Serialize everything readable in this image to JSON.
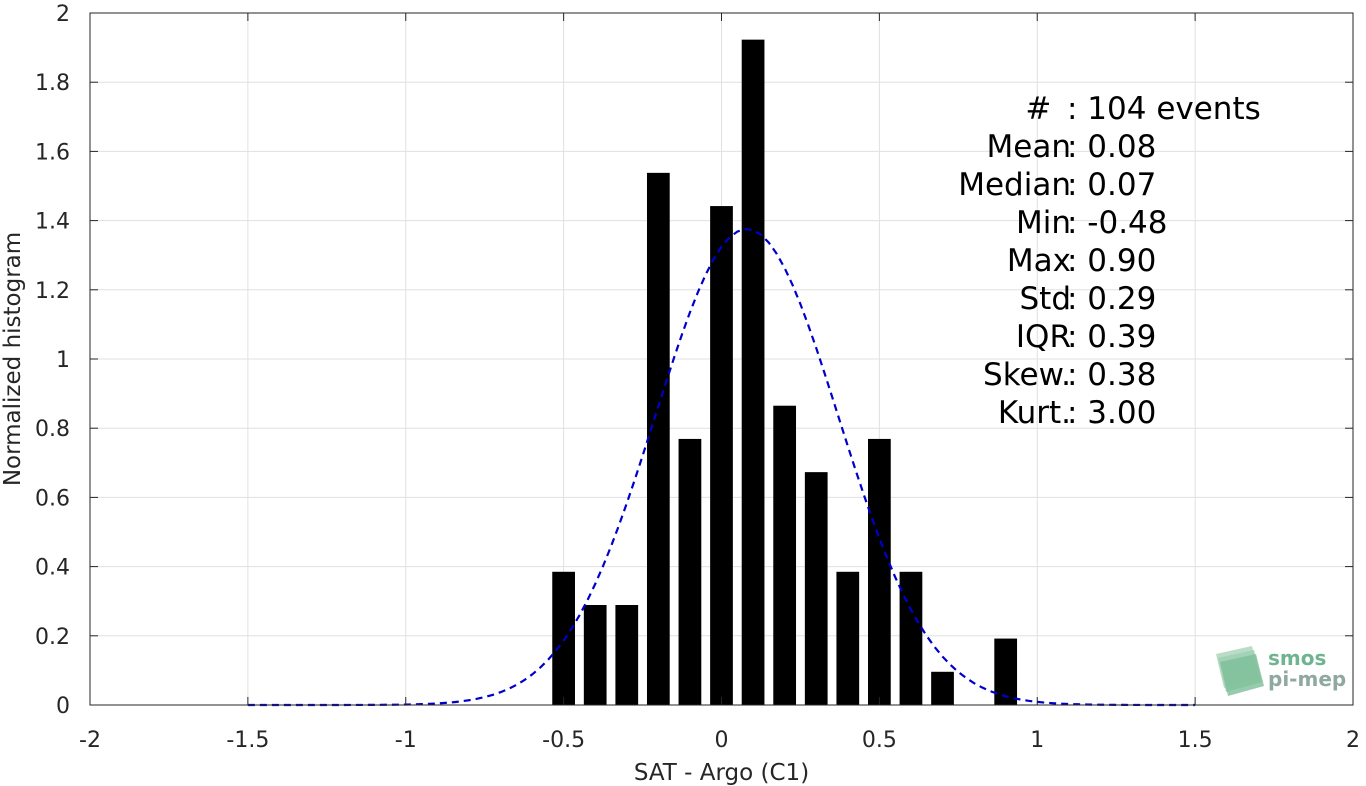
{
  "chart_data": {
    "type": "bar",
    "xlabel": "SAT - Argo (C1)",
    "ylabel": "Normalized histogram",
    "xlim": [
      -2,
      2
    ],
    "ylim": [
      0,
      2
    ],
    "x_ticks": [
      "-2",
      "-1.5",
      "-1",
      "-0.5",
      "0",
      "0.5",
      "1",
      "1.5",
      "2"
    ],
    "y_ticks": [
      "0",
      "0.2",
      "0.4",
      "0.6",
      "0.8",
      "1",
      "1.2",
      "1.4",
      "1.6",
      "1.8",
      "2"
    ],
    "grid": true,
    "bars": {
      "x": [
        -0.5,
        -0.4,
        -0.3,
        -0.2,
        -0.1,
        0.0,
        0.1,
        0.2,
        0.3,
        0.4,
        0.5,
        0.6,
        0.7,
        0.9
      ],
      "values": [
        0.385,
        0.289,
        0.289,
        1.538,
        0.769,
        1.442,
        1.923,
        0.865,
        0.673,
        0.385,
        0.769,
        0.385,
        0.096,
        0.192
      ],
      "color": "#000000"
    },
    "fit_curve": {
      "style": "dashed",
      "color": "#0000cc",
      "mean": 0.08,
      "std": 0.29,
      "x_range": [
        -1.5,
        1.5
      ]
    },
    "stats": [
      {
        "label": "#  ",
        "value": ": 104 events"
      },
      {
        "label": "Mean",
        "value": ": 0.08"
      },
      {
        "label": "Median",
        "value": ": 0.07"
      },
      {
        "label": "Min",
        "value": ": -0.48"
      },
      {
        "label": "Max",
        "value": ": 0.90"
      },
      {
        "label": "Std",
        "value": ": 0.29"
      },
      {
        "label": "IQR",
        "value": ": 0.39"
      },
      {
        "label": "Skew.",
        "value": ": 0.38"
      },
      {
        "label": "Kurt.",
        "value": ": 3.00"
      }
    ]
  },
  "logo": {
    "line1": "smos",
    "line2": "pi-mep"
  }
}
